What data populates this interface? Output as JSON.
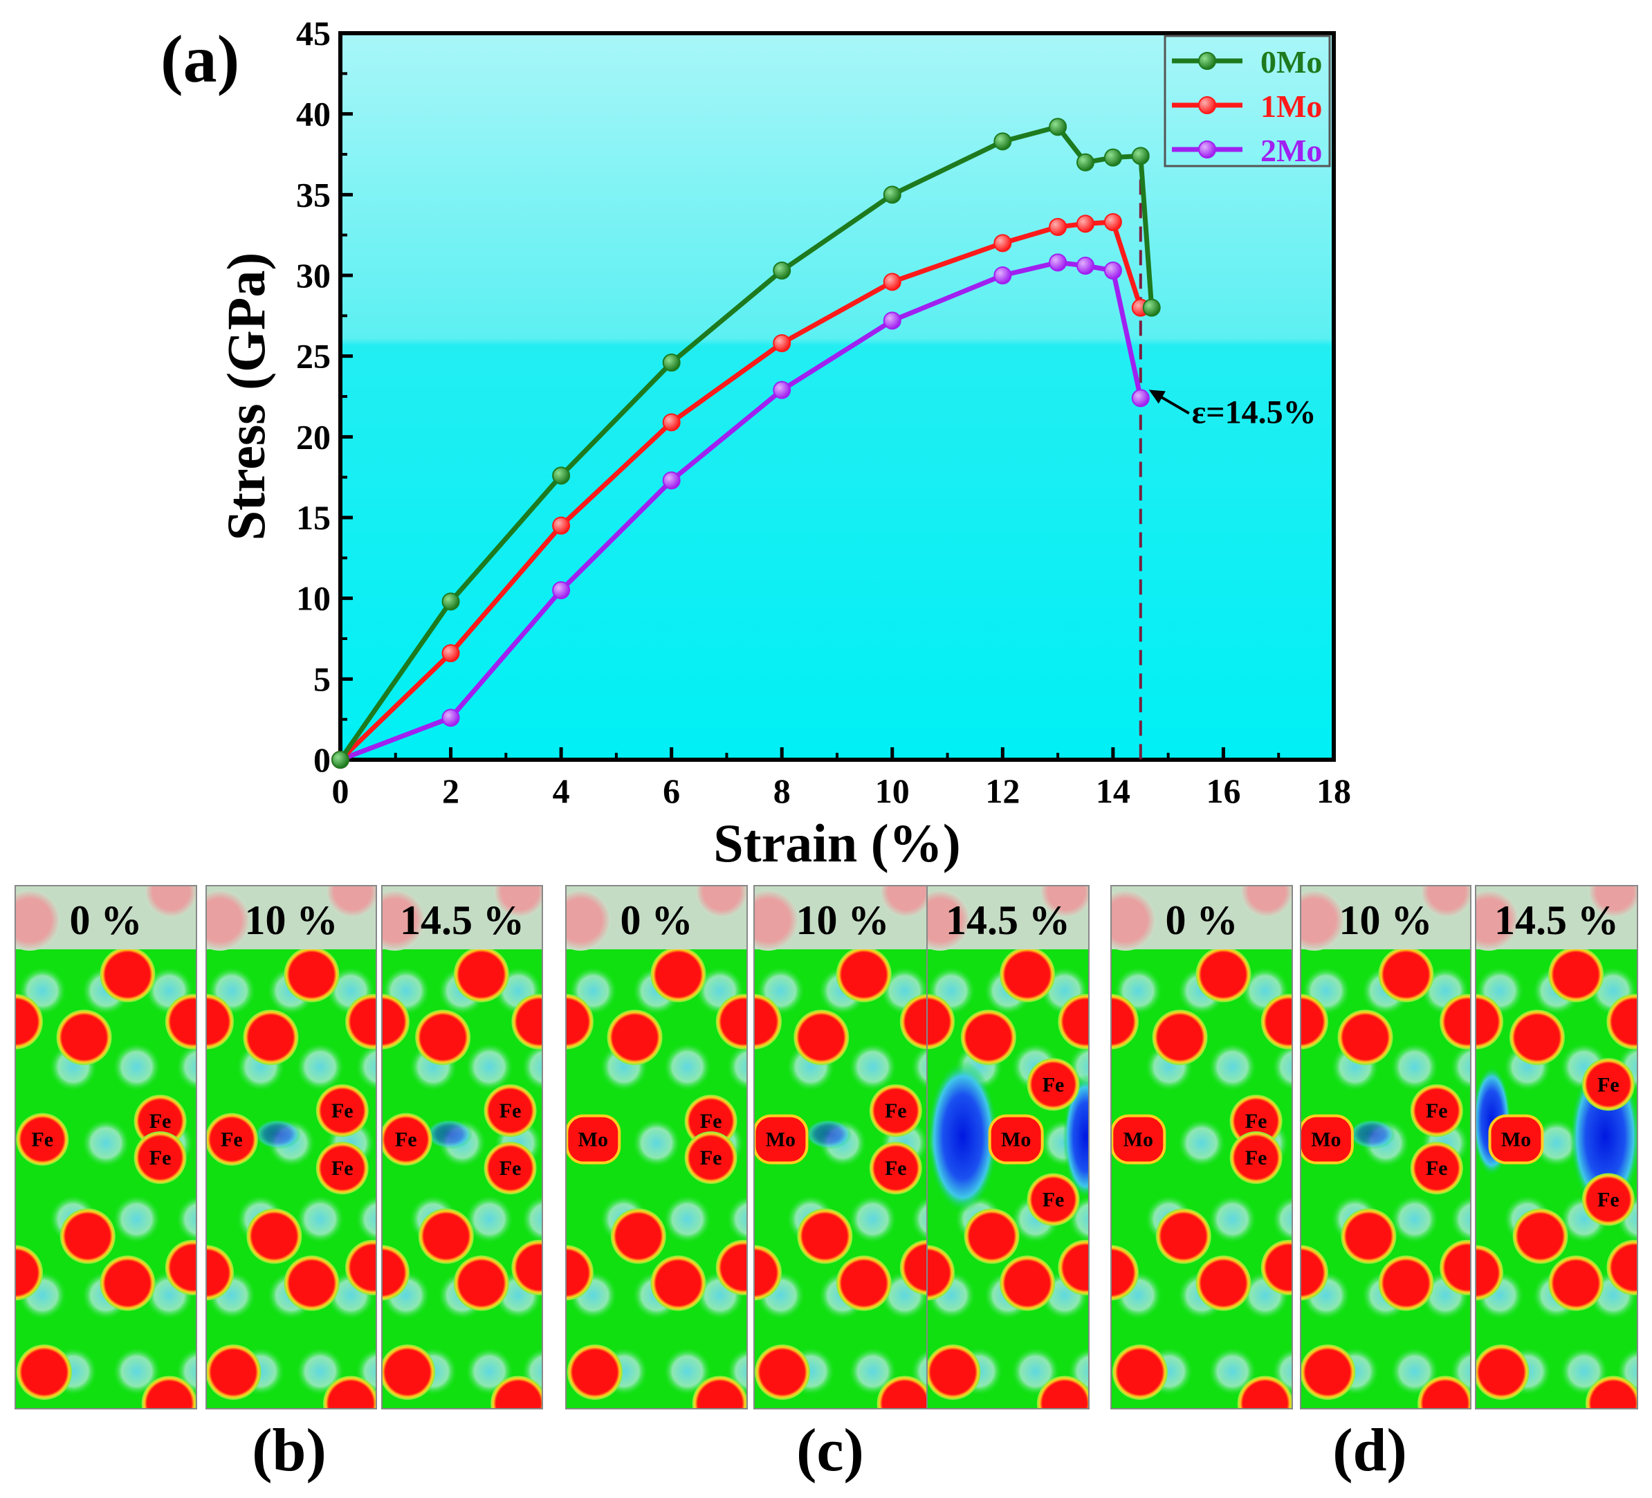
{
  "chart_data": {
    "type": "line",
    "panel_label": "(a)",
    "xlabel": "Strain (%)",
    "ylabel": "Stress (GPa)",
    "xlim": [
      0,
      18
    ],
    "ylim": [
      0,
      45
    ],
    "xticks": [
      0,
      2,
      4,
      6,
      8,
      10,
      12,
      14,
      16,
      18
    ],
    "yticks": [
      0,
      5,
      10,
      15,
      20,
      25,
      30,
      35,
      40,
      45
    ],
    "legend_position": "top-right",
    "series": [
      {
        "name": "0Mo",
        "color": "#1e7a1e",
        "x": [
          0,
          2,
          4,
          6,
          8,
          10,
          12,
          13,
          13.5,
          14,
          14.5,
          14.7
        ],
        "y": [
          0,
          9.8,
          17.6,
          24.6,
          30.3,
          35.0,
          38.3,
          39.2,
          37.0,
          37.3,
          37.4,
          28.0
        ]
      },
      {
        "name": "1Mo",
        "color": "#ff1a1a",
        "x": [
          0,
          2,
          4,
          6,
          8,
          10,
          12,
          13,
          13.5,
          14,
          14.5
        ],
        "y": [
          0,
          6.6,
          14.5,
          20.9,
          25.8,
          29.6,
          32.0,
          33.0,
          33.2,
          33.3,
          28.0
        ]
      },
      {
        "name": "2Mo",
        "color": "#a020f0",
        "x": [
          0,
          2,
          4,
          6,
          8,
          10,
          12,
          13,
          13.5,
          14,
          14.5
        ],
        "y": [
          0,
          2.6,
          10.5,
          17.3,
          22.9,
          27.2,
          30.0,
          30.8,
          30.6,
          30.3,
          22.4
        ]
      }
    ],
    "reference_line": {
      "x": 14.5,
      "style": "dashed",
      "color": "#7a1f3d"
    },
    "annotation": {
      "text": "ε=14.5%",
      "point_x": 14.5,
      "point_y": 22.4
    }
  },
  "snapshot_panels": [
    {
      "label": "(b)",
      "frames": [
        {
          "strain": "0 %",
          "atoms": [
            "Fe",
            "Fe",
            "Fe"
          ]
        },
        {
          "strain": "10 %",
          "atoms": [
            "Fe",
            "Fe",
            "Fe"
          ]
        },
        {
          "strain": "14.5 %",
          "atoms": [
            "Fe",
            "Fe",
            "Fe"
          ]
        }
      ]
    },
    {
      "label": "(c)",
      "frames": [
        {
          "strain": "0 %",
          "atoms": [
            "Mo",
            "Fe",
            "Fe"
          ]
        },
        {
          "strain": "10 %",
          "atoms": [
            "Mo",
            "Fe",
            "Fe"
          ]
        },
        {
          "strain": "14.5 %",
          "atoms": [
            "Mo",
            "Fe",
            "Fe"
          ]
        }
      ]
    },
    {
      "label": "(d)",
      "frames": [
        {
          "strain": "0 %",
          "atoms": [
            "Mo",
            "Fe",
            "Fe"
          ]
        },
        {
          "strain": "10 %",
          "atoms": [
            "Mo",
            "Fe",
            "Fe"
          ]
        },
        {
          "strain": "14.5 %",
          "atoms": [
            "Mo",
            "Fe",
            "Fe"
          ]
        }
      ]
    }
  ]
}
